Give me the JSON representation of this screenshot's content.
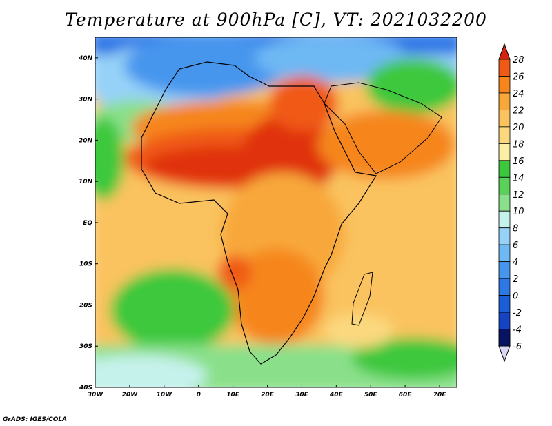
{
  "title": "Temperature at 900hPa [C], VT: 2021032200",
  "credit": "GrADS: IGES/COLA",
  "map": {
    "lon_range": [
      -30,
      75
    ],
    "lat_range": [
      -40,
      45
    ],
    "lon_ticks": [
      "30W",
      "20W",
      "10W",
      "0",
      "10E",
      "20E",
      "30E",
      "40E",
      "50E",
      "60E",
      "70E"
    ],
    "lat_ticks": [
      "40N",
      "30N",
      "20N",
      "10N",
      "EQ",
      "10S",
      "20S",
      "30S",
      "40S"
    ],
    "lon_tick_values": [
      -30,
      -20,
      -10,
      0,
      10,
      20,
      30,
      40,
      50,
      60,
      70
    ],
    "lat_tick_values": [
      40,
      30,
      20,
      10,
      0,
      -10,
      -20,
      -30,
      -40
    ]
  },
  "colorbar": {
    "levels": [
      "28",
      "26",
      "24",
      "22",
      "20",
      "18",
      "16",
      "14",
      "12",
      "10",
      "8",
      "6",
      "4",
      "2",
      "0",
      "-2",
      "-4",
      "-6"
    ],
    "colors": [
      "#e03010",
      "#f05a14",
      "#f6861c",
      "#f8a83a",
      "#fac35e",
      "#fbd87e",
      "#fdeea6",
      "#3cc83c",
      "#5ad25a",
      "#8ae08a",
      "#c6f2ec",
      "#96d2f8",
      "#6eb8f4",
      "#4696ee",
      "#2e78e6",
      "#1c5ed8",
      "#1444c4",
      "#0a2a9e",
      "#081462"
    ],
    "top_arrow_color": "#d42210",
    "bottom_arrow_color": "#d8d8f6"
  }
}
